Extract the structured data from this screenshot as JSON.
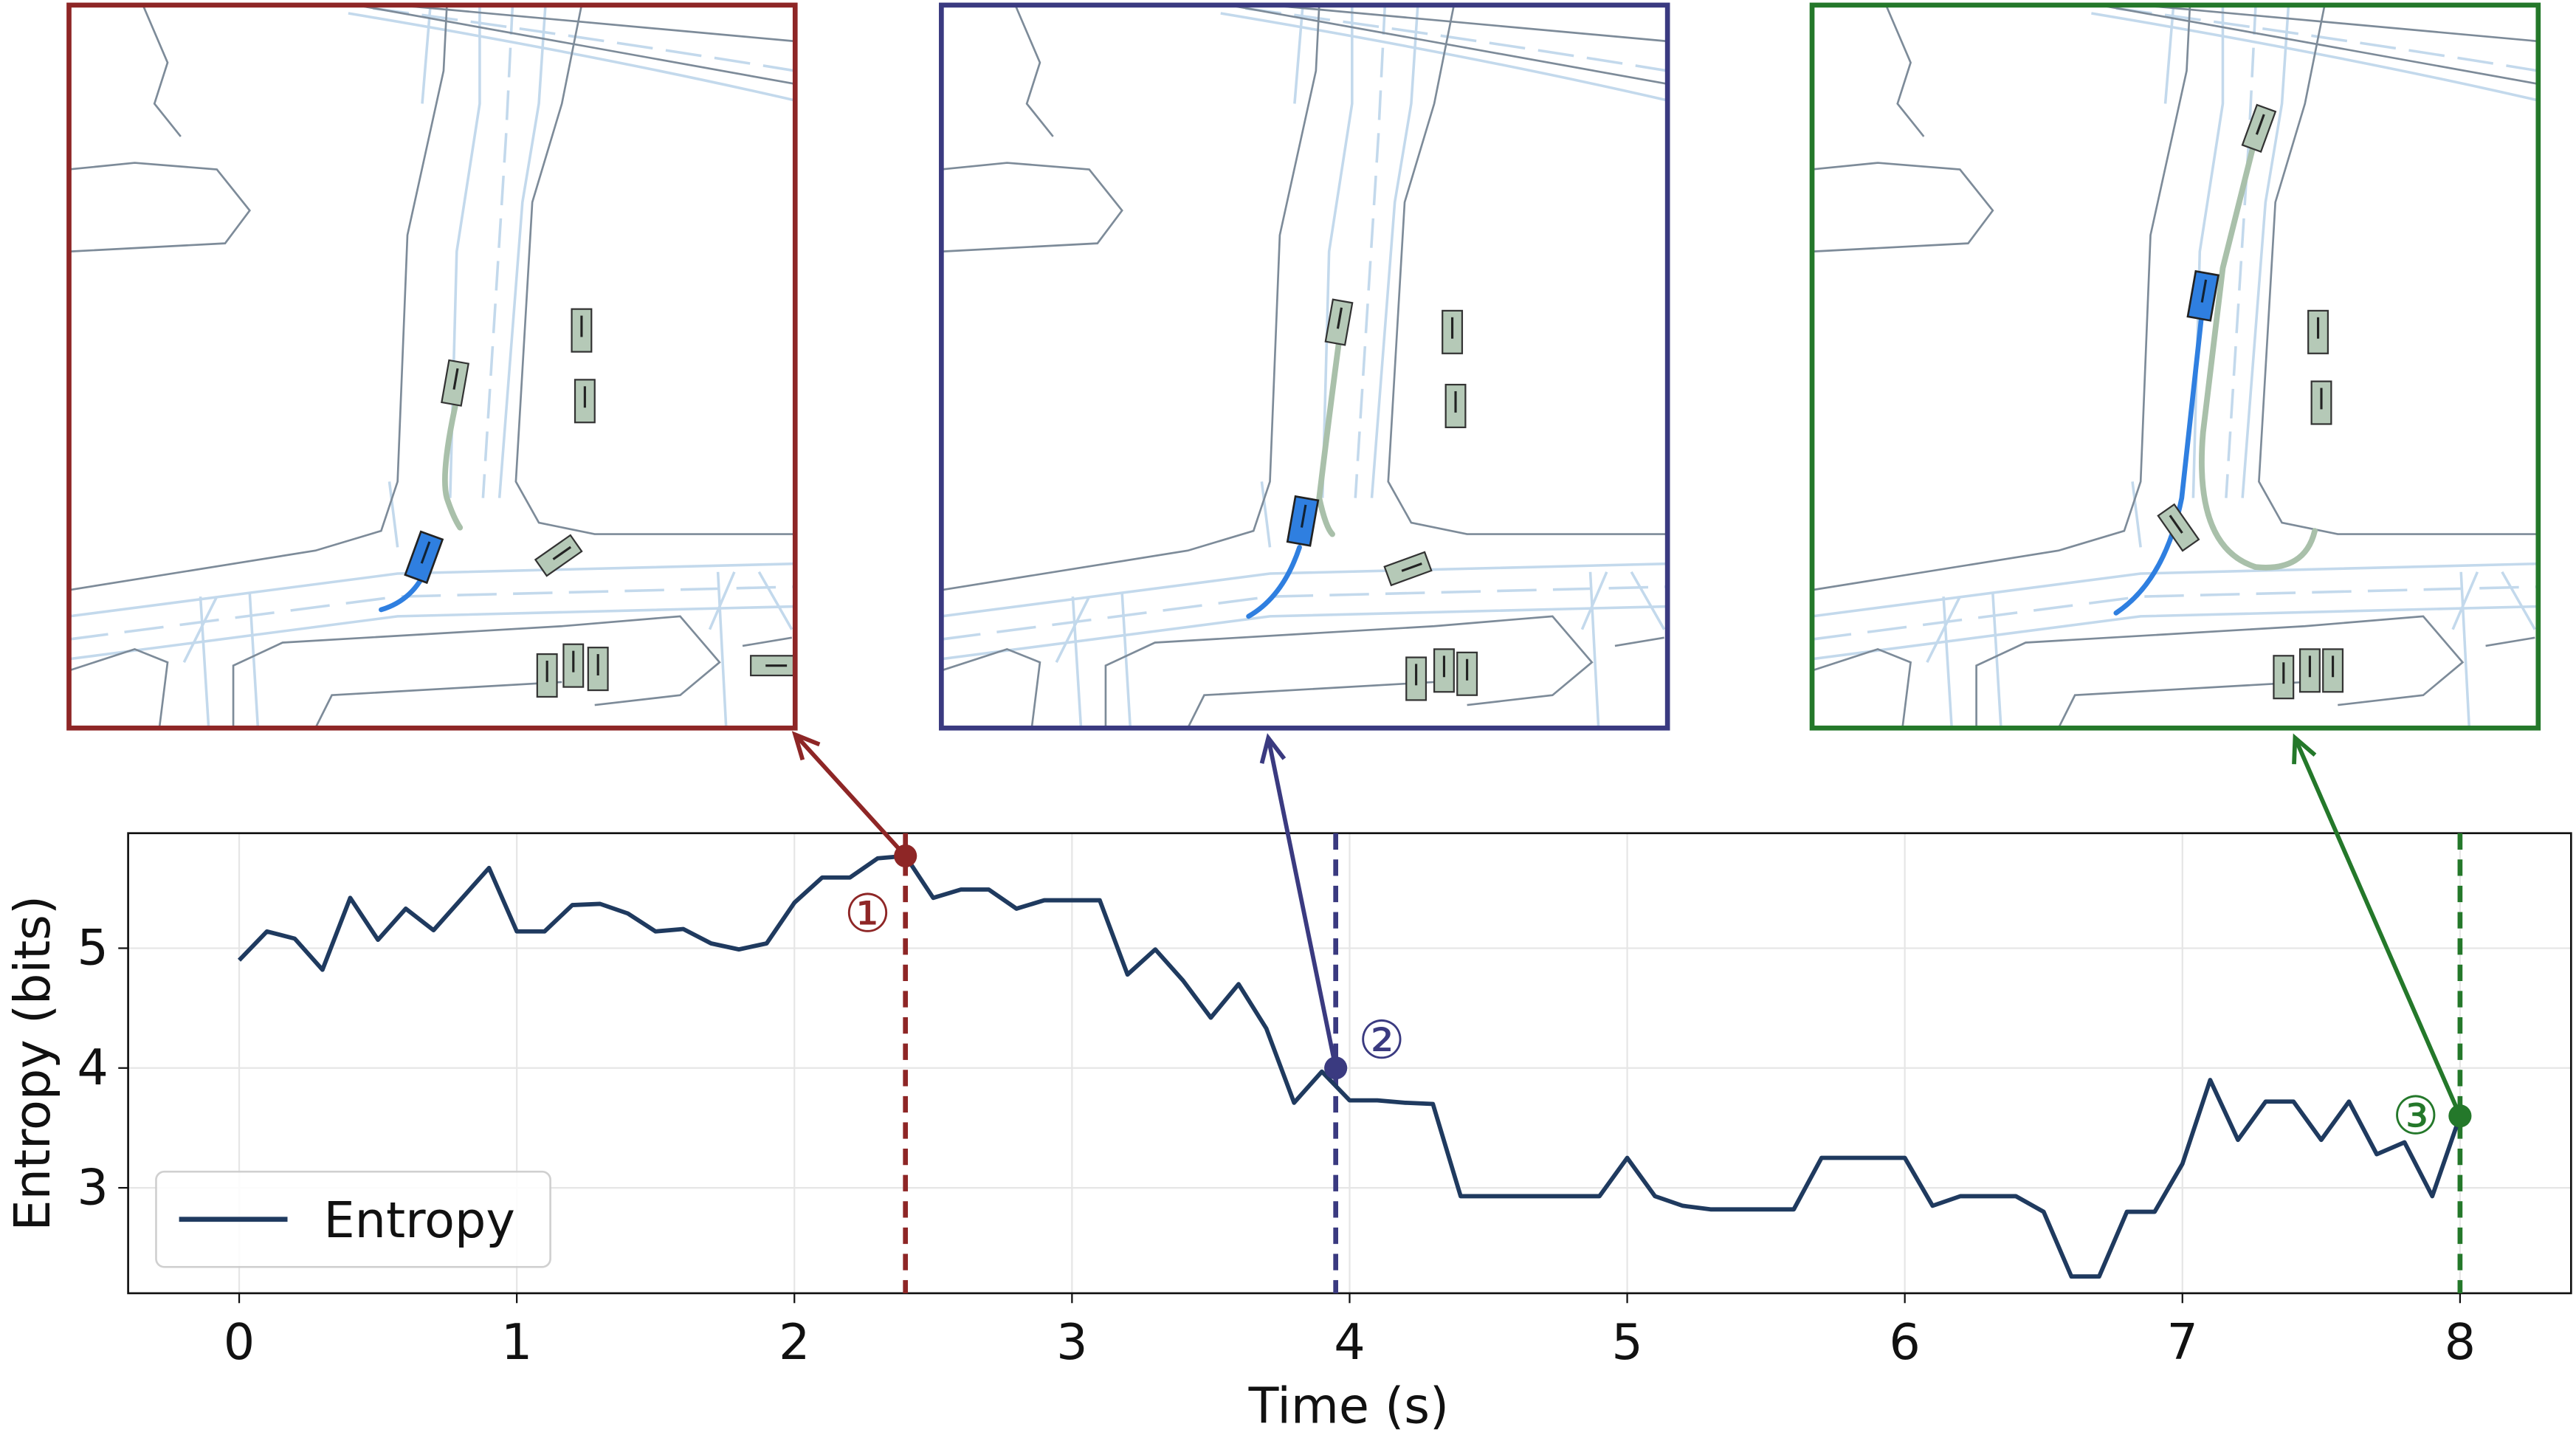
{
  "chart_data": {
    "type": "line",
    "xlabel": "Time (s)",
    "ylabel": "Entropy (bits)",
    "x": [
      0,
      0.1,
      0.2,
      0.3,
      0.4,
      0.5,
      0.6,
      0.7,
      0.8,
      0.9,
      1,
      1.1,
      1.2,
      1.3,
      1.4,
      1.5,
      1.6,
      1.7,
      1.8,
      1.9,
      2,
      2.1,
      2.2,
      2.3,
      2.4,
      2.5,
      2.6,
      2.7,
      2.8,
      2.9,
      3,
      3.1,
      3.2,
      3.3,
      3.4,
      3.5,
      3.6,
      3.7,
      3.8,
      3.9,
      4,
      4.1,
      4.2,
      4.3,
      4.4,
      4.5,
      4.6,
      4.7,
      4.8,
      4.9,
      5,
      5.1,
      5.2,
      5.3,
      5.4,
      5.5,
      5.6,
      5.7,
      5.8,
      5.9,
      6,
      6.1,
      6.2,
      6.3,
      6.4,
      6.5,
      6.6,
      6.7,
      6.8,
      6.9,
      7,
      7.1,
      7.2,
      7.3,
      7.4,
      7.5,
      7.6,
      7.7,
      7.8,
      7.9,
      8
    ],
    "series": [
      {
        "name": "Entropy",
        "color": "#1f3a5f",
        "values": [
          4.9,
          5.14,
          5.08,
          4.82,
          5.42,
          5.07,
          5.33,
          5.15,
          5.41,
          5.67,
          5.14,
          5.14,
          5.36,
          5.37,
          5.29,
          5.14,
          5.16,
          5.04,
          4.99,
          5.04,
          5.38,
          5.59,
          5.59,
          5.75,
          5.77,
          5.42,
          5.49,
          5.49,
          5.33,
          5.4,
          5.4,
          5.4,
          4.78,
          4.99,
          4.73,
          4.42,
          4.7,
          4.33,
          3.71,
          3.97,
          3.73,
          3.73,
          3.71,
          3.7,
          2.93,
          2.93,
          2.93,
          2.93,
          2.93,
          2.93,
          3.25,
          2.93,
          2.85,
          2.82,
          2.82,
          2.82,
          2.82,
          3.25,
          3.25,
          3.25,
          3.25,
          2.85,
          2.93,
          2.93,
          2.93,
          2.8,
          2.26,
          2.26,
          2.8,
          2.8,
          3.2,
          3.9,
          3.4,
          3.72,
          3.72,
          3.4,
          3.72,
          3.28,
          3.38,
          2.93,
          3.6
        ]
      }
    ],
    "xlim": [
      -0.4,
      8.4
    ],
    "ylim": [
      2.12,
      5.96
    ],
    "xticks": [
      0,
      1,
      2,
      3,
      4,
      5,
      6,
      7,
      8
    ],
    "yticks": [
      3,
      4,
      5
    ],
    "grid": true,
    "legend": "lower left",
    "annotations": [
      {
        "label": "①",
        "x": 2.4,
        "y": 5.77,
        "color": "#8e2626"
      },
      {
        "label": "②",
        "x": 3.95,
        "y": 4.0,
        "color": "#3a3a80"
      },
      {
        "label": "③",
        "x": 8.0,
        "y": 3.6,
        "color": "#24782a"
      }
    ]
  }
}
